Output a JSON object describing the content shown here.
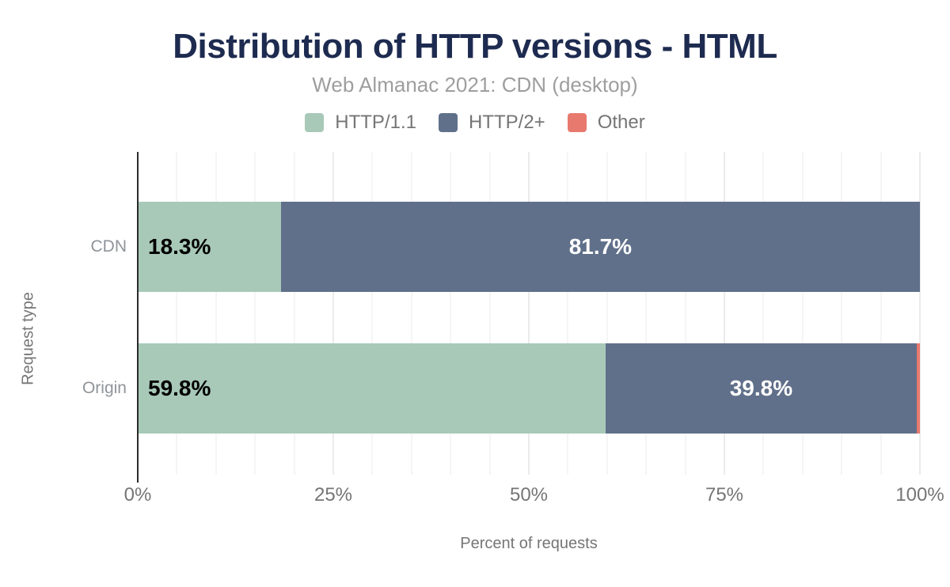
{
  "chart_data": {
    "type": "bar",
    "orientation": "horizontal",
    "stacked": true,
    "title": "Distribution of HTTP versions - HTML",
    "subtitle": "Web Almanac 2021: CDN (desktop)",
    "xlabel": "Percent of requests",
    "ylabel": "Request type",
    "categories": [
      "CDN",
      "Origin"
    ],
    "series": [
      {
        "name": "HTTP/1.1",
        "color": "#a8c9b8",
        "label_color": "#000000",
        "values": [
          18.3,
          59.8
        ]
      },
      {
        "name": "HTTP/2+",
        "color": "#60708a",
        "label_color": "#ffffff",
        "values": [
          81.7,
          39.8
        ]
      },
      {
        "name": "Other",
        "color": "#e8796e",
        "label_color": "#ffffff",
        "values": [
          0.0,
          0.4
        ]
      }
    ],
    "bar_labels": [
      [
        "18.3%",
        "81.7%",
        ""
      ],
      [
        "59.8%",
        "39.8%",
        ""
      ]
    ],
    "x_ticks": [
      "0%",
      "25%",
      "50%",
      "75%",
      "100%"
    ],
    "xlim": [
      0,
      100
    ],
    "grid": {
      "minor_step_pct": 5,
      "major_step_pct": 25
    },
    "legend_position": "top"
  },
  "styles": {
    "title_color": "#1e2b50",
    "subtitle_color": "#9e9e9e",
    "legend_text_color": "#757575",
    "tick_label_color": "#757575",
    "category_label_color": "#8f9499",
    "axis_line_color": "#2b2b2b",
    "minor_grid_color": "#f5f5f5",
    "major_grid_color": "#ebebeb",
    "background_color": "#ffffff"
  }
}
